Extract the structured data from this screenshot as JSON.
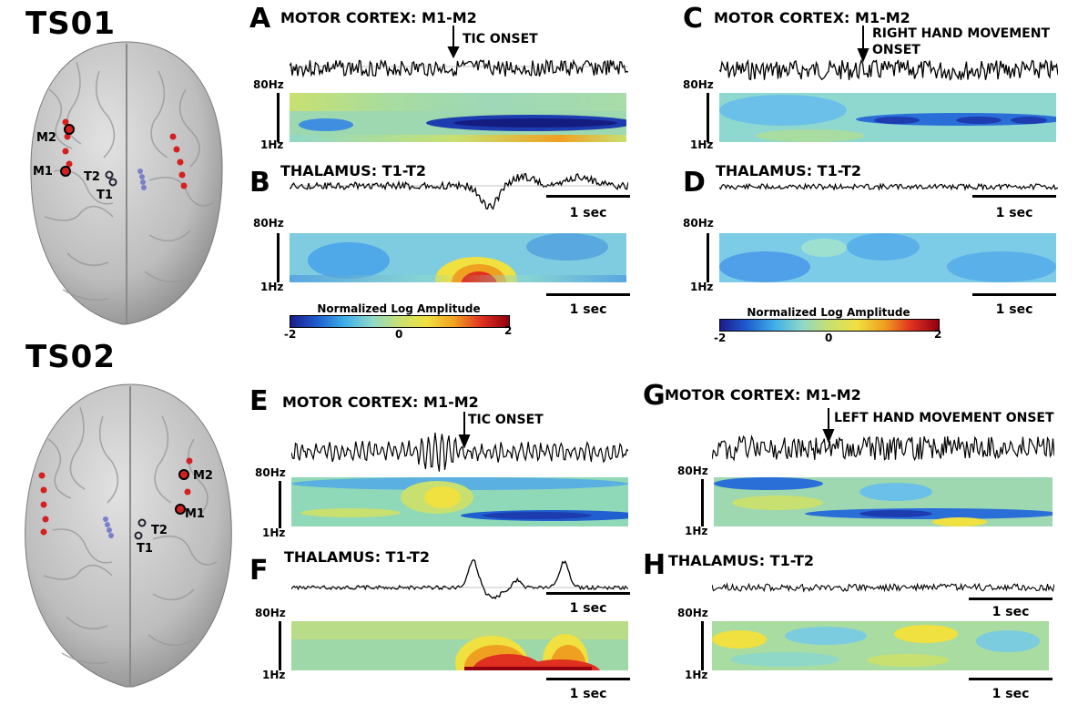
{
  "subjects": [
    {
      "name": "TS01"
    },
    {
      "name": "TS02"
    }
  ],
  "brain_labels": {
    "ts01": {
      "m2": "M2",
      "m1": "M1",
      "t2": "T2",
      "t1": "T1"
    },
    "ts02": {
      "m2": "M2",
      "m1": "M1",
      "t2": "T2",
      "t1": "T1"
    }
  },
  "panels": {
    "A": {
      "letter": "A",
      "title": "MOTOR CORTEX: M1-M2",
      "annotation": "TIC ONSET"
    },
    "B": {
      "letter": "B",
      "title": "THALAMUS: T1-T2"
    },
    "C": {
      "letter": "C",
      "title": "MOTOR CORTEX: M1-M2",
      "annotation": "RIGHT HAND MOVEMENT\nONSET"
    },
    "D": {
      "letter": "D",
      "title": "THALAMUS: T1-T2"
    },
    "E": {
      "letter": "E",
      "title": "MOTOR CORTEX: M1-M2",
      "annotation": "TIC ONSET"
    },
    "F": {
      "letter": "F",
      "title": "THALAMUS: T1-T2"
    },
    "G": {
      "letter": "G",
      "title": "MOTOR CORTEX: M1-M2",
      "annotation": "LEFT HAND MOVEMENT ONSET"
    },
    "H": {
      "letter": "H",
      "title": "THALAMUS: T1-T2"
    }
  },
  "freq_axis": {
    "top": "80Hz",
    "bottom": "1Hz"
  },
  "scale_bar": "1 sec",
  "colorbar": {
    "title": "Normalized Log Amplitude",
    "min": "-2",
    "mid": "0",
    "max": "2",
    "colors": [
      "#1c1c8c",
      "#1f5fd0",
      "#3fb0e8",
      "#8fd8c8",
      "#c8e070",
      "#f0e040",
      "#f0a020",
      "#e03020",
      "#900010"
    ]
  },
  "colors": {
    "background": "#fff",
    "trace": "#000",
    "brain": "#c4c4c4",
    "electrode_red": "#d42020",
    "depth_blue": "#7a80c8"
  }
}
